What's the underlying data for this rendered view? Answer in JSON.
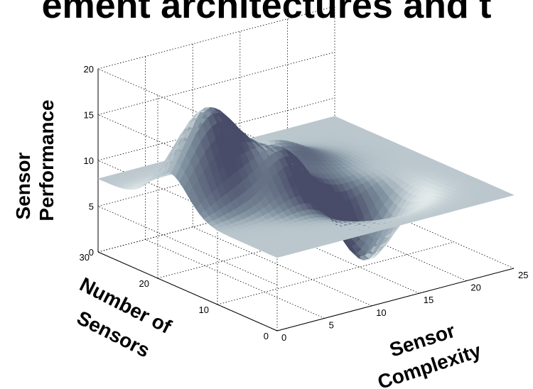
{
  "slide": {
    "title": "ement architectures and t"
  },
  "chart_data": {
    "type": "surface",
    "title": "",
    "xlabel": "Sensor Complexity",
    "ylabel_line1": "Number of",
    "ylabel_line2": "Sensors",
    "zlabel_line1": "Sensor",
    "zlabel_line2": "Performance",
    "xlim": [
      0,
      25
    ],
    "ylim": [
      0,
      30
    ],
    "zlim": [
      0,
      20
    ],
    "x_ticks": [
      0,
      5,
      10,
      15,
      20,
      25
    ],
    "y_ticks": [
      0,
      10,
      20,
      30
    ],
    "z_ticks": [
      0,
      5,
      10,
      15,
      20
    ],
    "grid": true,
    "surface": {
      "base_level": 8,
      "peaks": [
        {
          "x": 4,
          "y": 18,
          "height": 10,
          "spread": 3.0
        },
        {
          "x": 9,
          "y": 13,
          "height": 5,
          "spread": 2.5
        },
        {
          "x": 15,
          "y": 9,
          "height": -7,
          "spread": 2.5
        },
        {
          "x": 13,
          "y": 21,
          "height": 3,
          "spread": 3.0
        }
      ],
      "colormap": "bone"
    }
  }
}
